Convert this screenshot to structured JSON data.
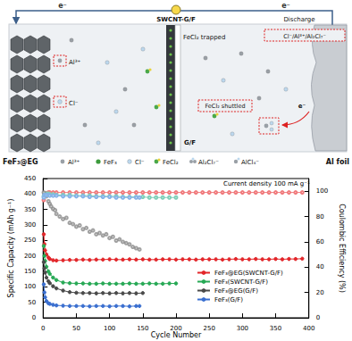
{
  "diagram": {
    "electrons": [
      "e⁻",
      "e⁻"
    ],
    "bulb_label": "SWCNT-G/F",
    "process": "Discharge",
    "trapped": "FeCl₂ trapped",
    "shuttled": "FeCl₂ shuttled",
    "separator": "G/F",
    "cathode": "FeF₃@EG",
    "anode": "Al foil",
    "cathode_ions": [
      "Al³⁺",
      "Cl⁻"
    ],
    "anode_ions": "Cl⁻/Al³⁺/Al₂Cl₇⁻",
    "anode_electron": "e⁻",
    "key": [
      "Al³⁺",
      "FeF₃",
      "Cl⁻",
      "FeCl₂",
      "Al₂Cl₇⁻",
      "AlCl₄⁻"
    ]
  },
  "chart_data": {
    "type": "line",
    "xlabel": "Cycle Number",
    "ylabel": "Specific Capacity (mAh g⁻¹)",
    "y2label": "Coulombic Efficiency (%)",
    "annotation": "Current density 100 mA g⁻¹",
    "xlim": [
      0,
      400
    ],
    "xticks": [
      0,
      50,
      100,
      150,
      200,
      250,
      300,
      350,
      400
    ],
    "ylim": [
      0,
      450
    ],
    "yticks": [
      0,
      50,
      100,
      150,
      200,
      250,
      300,
      350,
      400,
      450
    ],
    "y2lim": [
      0,
      110
    ],
    "y2ticks": [
      0,
      20,
      40,
      60,
      80,
      100
    ],
    "grid": false,
    "legend": "right",
    "series": [
      {
        "name": "FeF₃@EG(SWCNT-G/F)",
        "color": "#e3262a",
        "marker": "circle",
        "x": [
          1,
          2,
          3,
          5,
          8,
          10,
          15,
          20,
          30,
          40,
          50,
          60,
          70,
          80,
          90,
          100,
          110,
          120,
          130,
          140,
          150,
          160,
          170,
          180,
          190,
          200,
          210,
          220,
          230,
          240,
          250,
          260,
          270,
          280,
          290,
          300,
          310,
          320,
          330,
          340,
          350,
          360,
          370,
          380,
          390
        ],
        "values": [
          270,
          238,
          218,
          205,
          195,
          190,
          186,
          185,
          186,
          187,
          187,
          188,
          187,
          188,
          188,
          189,
          188,
          188,
          189,
          188,
          189,
          188,
          188,
          189,
          189,
          188,
          189,
          189,
          188,
          189,
          189,
          189,
          188,
          189,
          190,
          189,
          189,
          190,
          189,
          189,
          190,
          189,
          190,
          190,
          191
        ]
      },
      {
        "name": "FeF₃(SWCNT-G/F)",
        "color": "#27a955",
        "marker": "circle",
        "x": [
          1,
          2,
          3,
          5,
          8,
          10,
          15,
          20,
          30,
          40,
          50,
          60,
          70,
          80,
          90,
          100,
          110,
          120,
          130,
          140,
          150,
          160,
          170,
          180,
          190,
          200
        ],
        "values": [
          232,
          200,
          184,
          165,
          150,
          142,
          130,
          122,
          114,
          112,
          111,
          111,
          110,
          110,
          111,
          110,
          110,
          110,
          111,
          110,
          110,
          111,
          110,
          110,
          111,
          111
        ]
      },
      {
        "name": "FeF₃@EG(G/F)",
        "color": "#4a4a4a",
        "marker": "circle",
        "x": [
          1,
          2,
          3,
          5,
          8,
          10,
          15,
          20,
          30,
          40,
          50,
          60,
          70,
          80,
          90,
          100,
          110,
          120,
          130,
          140,
          150
        ],
        "values": [
          180,
          160,
          146,
          130,
          118,
          112,
          102,
          95,
          88,
          83,
          81,
          80,
          80,
          79,
          80,
          79,
          80,
          79,
          80,
          79,
          80
        ]
      },
      {
        "name": "FeF₃(G/F)",
        "color": "#3a6fd0",
        "marker": "circle",
        "x": [
          1,
          2,
          3,
          5,
          8,
          10,
          15,
          20,
          30,
          40,
          50,
          60,
          70,
          80,
          90,
          100,
          110,
          120,
          130,
          140,
          145
        ],
        "values": [
          108,
          82,
          66,
          54,
          47,
          45,
          42,
          40,
          39,
          38,
          38,
          38,
          37,
          38,
          38,
          37,
          38,
          38,
          37,
          38,
          38
        ]
      },
      {
        "color": "#f07a7c",
        "marker": "open circle",
        "axis": "y2",
        "x": [
          1,
          2,
          3,
          5,
          8,
          10,
          15,
          20,
          30,
          40,
          50,
          60,
          70,
          80,
          90,
          100,
          110,
          120,
          130,
          140,
          150,
          160,
          170,
          180,
          190,
          200,
          210,
          220,
          230,
          240,
          250,
          260,
          270,
          280,
          290,
          300,
          310,
          320,
          330,
          340,
          350,
          360,
          370,
          380,
          390
        ],
        "values": [
          93,
          97,
          98,
          98.5,
          99,
          99,
          99,
          99,
          99,
          99,
          99,
          99,
          99,
          99,
          99,
          99,
          99,
          99,
          99,
          99,
          99,
          99,
          99,
          99,
          99,
          99,
          99,
          99,
          99,
          99,
          99,
          99,
          99,
          99,
          99,
          99,
          99,
          99,
          99,
          99,
          99,
          99,
          99,
          99,
          99
        ]
      },
      {
        "color": "#7fcfb8",
        "marker": "open circle",
        "axis": "y2",
        "x": [
          1,
          2,
          3,
          5,
          8,
          10,
          15,
          20,
          30,
          40,
          50,
          60,
          70,
          80,
          90,
          100,
          110,
          120,
          130,
          140,
          150,
          160,
          170,
          180,
          190,
          200
        ],
        "values": [
          96,
          98,
          98,
          98,
          98,
          97.5,
          97.5,
          97,
          97,
          97,
          96.5,
          96.5,
          96.5,
          96,
          96,
          96,
          96,
          95.5,
          95.5,
          95.5,
          95.5,
          95,
          95,
          95,
          95,
          95
        ]
      },
      {
        "color": "#8a8a8a",
        "marker": "open circle",
        "axis": "y2",
        "type": "scatter",
        "x": [
          1,
          3,
          5,
          8,
          10,
          12,
          15,
          18,
          20,
          25,
          30,
          35,
          40,
          45,
          50,
          55,
          60,
          65,
          70,
          75,
          80,
          85,
          90,
          95,
          100,
          105,
          110,
          115,
          120,
          125,
          130,
          135,
          140,
          145
        ],
        "values": [
          99,
          97,
          96,
          92,
          90,
          88,
          86,
          85,
          82,
          80,
          78,
          79,
          75,
          74,
          72,
          73,
          70,
          71,
          68,
          69,
          66,
          67,
          65,
          66,
          63,
          64,
          61,
          62,
          60,
          59,
          58,
          56,
          55,
          54
        ]
      },
      {
        "color": "#86b3e8",
        "marker": "open circle",
        "axis": "y2",
        "x": [
          1,
          2,
          3,
          5,
          8,
          10,
          15,
          20,
          30,
          40,
          50,
          60,
          70,
          80,
          90,
          100,
          110,
          120,
          130,
          140,
          145
        ],
        "values": [
          95,
          97,
          97,
          97,
          97,
          96.5,
          96.5,
          96.5,
          96,
          96,
          96,
          96,
          95.5,
          95.5,
          95.5,
          95.5,
          95,
          95,
          95,
          95,
          95
        ]
      }
    ]
  }
}
